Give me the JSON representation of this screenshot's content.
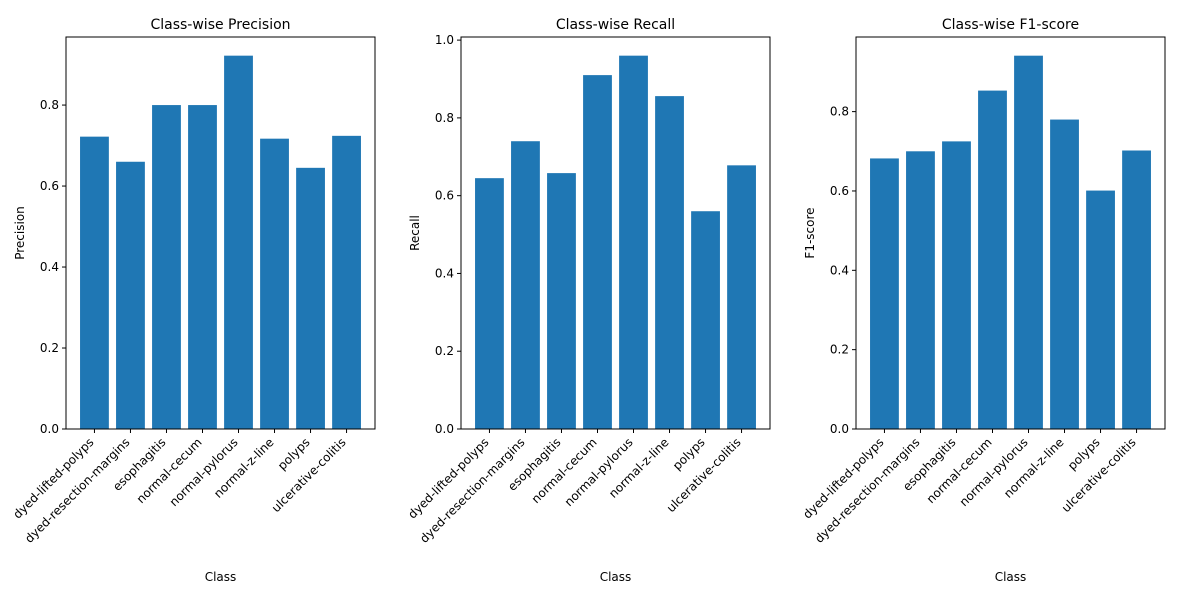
{
  "chart_data": [
    {
      "type": "bar",
      "title": "Class-wise Precision",
      "xlabel": "Class",
      "ylabel": "Precision",
      "categories": [
        "dyed-lifted-polyps",
        "dyed-resection-margins",
        "esophagitis",
        "normal-cecum",
        "normal-pylorus",
        "normal-z-line",
        "polyps",
        "ulcerative-colitis"
      ],
      "values": [
        0.722,
        0.66,
        0.8,
        0.8,
        0.922,
        0.717,
        0.645,
        0.724
      ],
      "ylim": [
        0,
        0.9681
      ],
      "yticks": [
        0.0,
        0.2,
        0.4,
        0.6,
        0.8
      ],
      "ytick_labels": [
        "0.0",
        "0.2",
        "0.4",
        "0.6",
        "0.8"
      ],
      "bar_color": "#1f77b4",
      "grid": false,
      "legend": "none"
    },
    {
      "type": "bar",
      "title": "Class-wise Recall",
      "xlabel": "Class",
      "ylabel": "Recall",
      "categories": [
        "dyed-lifted-polyps",
        "dyed-resection-margins",
        "esophagitis",
        "normal-cecum",
        "normal-pylorus",
        "normal-z-line",
        "polyps",
        "ulcerative-colitis"
      ],
      "values": [
        0.645,
        0.74,
        0.658,
        0.91,
        0.96,
        0.856,
        0.56,
        0.678
      ],
      "ylim": [
        0,
        1.008
      ],
      "yticks": [
        0.0,
        0.2,
        0.4,
        0.6,
        0.8,
        1.0
      ],
      "ytick_labels": [
        "0.0",
        "0.2",
        "0.4",
        "0.6",
        "0.8",
        "1.0"
      ],
      "bar_color": "#1f77b4",
      "grid": false,
      "legend": "none"
    },
    {
      "type": "bar",
      "title": "Class-wise F1-score",
      "xlabel": "Class",
      "ylabel": "F1-score",
      "categories": [
        "dyed-lifted-polyps",
        "dyed-resection-margins",
        "esophagitis",
        "normal-cecum",
        "normal-pylorus",
        "normal-z-line",
        "polyps",
        "ulcerative-colitis"
      ],
      "values": [
        0.682,
        0.7,
        0.725,
        0.853,
        0.941,
        0.78,
        0.601,
        0.702
      ],
      "ylim": [
        0,
        0.9881
      ],
      "yticks": [
        0.0,
        0.2,
        0.4,
        0.6,
        0.8
      ],
      "ytick_labels": [
        "0.0",
        "0.2",
        "0.4",
        "0.6",
        "0.8"
      ],
      "bar_color": "#1f77b4",
      "grid": false,
      "legend": "none"
    }
  ]
}
